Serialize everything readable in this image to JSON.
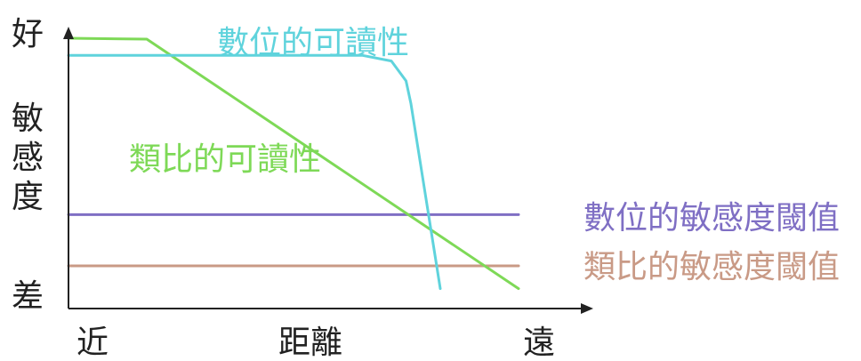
{
  "chart_data": {
    "type": "line",
    "title": "",
    "xlabel": "距離",
    "x_end_labels": {
      "start": "近",
      "end": "遠"
    },
    "ylabel": "敏感度",
    "y_end_labels": {
      "top": "好",
      "bottom": "差"
    },
    "xlim": [
      0,
      100
    ],
    "ylim": [
      0,
      100
    ],
    "grid": false,
    "series": [
      {
        "name": "數位的可讀性",
        "color": "#5fd3dc",
        "points": [
          [
            0,
            89
          ],
          [
            60,
            89
          ],
          [
            66,
            87
          ],
          [
            69,
            80
          ],
          [
            70,
            72
          ],
          [
            76,
            7
          ]
        ]
      },
      {
        "name": "類比的可讀性",
        "color": "#7ed957",
        "points": [
          [
            0,
            95
          ],
          [
            16,
            94.7
          ],
          [
            92,
            7
          ]
        ]
      },
      {
        "name": "數位的敏感度閾值",
        "color": "#7f6fc4",
        "points": [
          [
            0,
            33
          ],
          [
            92,
            33
          ]
        ]
      },
      {
        "name": "類比的敏感度閾值",
        "color": "#c99a86",
        "points": [
          [
            0,
            15
          ],
          [
            92,
            15
          ]
        ]
      }
    ]
  }
}
